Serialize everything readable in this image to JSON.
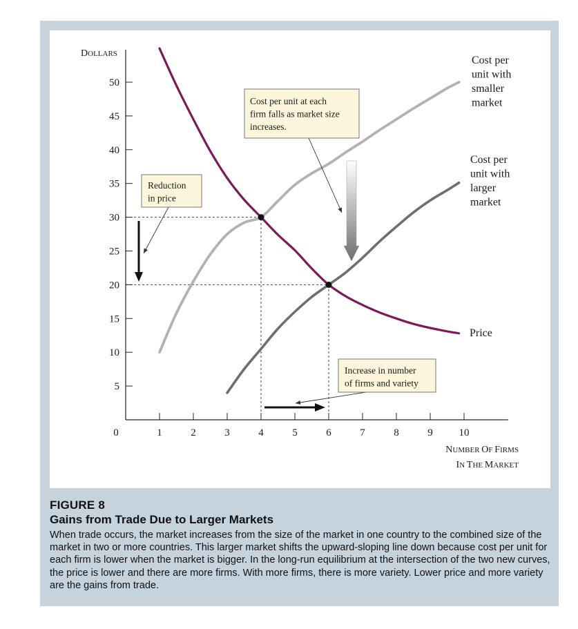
{
  "chart_data": {
    "type": "line",
    "x_axis": {
      "label_line1": "Number of firms",
      "label_line2": "in the market",
      "range": [
        0,
        11.3
      ],
      "ticks": [
        0,
        1,
        2,
        3,
        4,
        5,
        6,
        7,
        8,
        9,
        10
      ]
    },
    "y_axis": {
      "label": "Dollars",
      "range": [
        0,
        55
      ],
      "ticks": [
        5,
        10,
        15,
        20,
        25,
        30,
        35,
        40,
        45,
        50
      ]
    },
    "series": [
      {
        "name": "Price",
        "label_lines": [
          "Price"
        ],
        "color": "#7a1a5a",
        "x": [
          1,
          1.5,
          2,
          2.5,
          3,
          3.5,
          4,
          4.5,
          5,
          5.5,
          6,
          6.5,
          7,
          7.5,
          8,
          8.5,
          9,
          9.5,
          9.85
        ],
        "y": [
          55,
          49.5,
          44.5,
          39.8,
          35.8,
          32.6,
          30,
          27.4,
          25.1,
          22.4,
          20,
          18.3,
          17,
          15.9,
          15,
          14.2,
          13.6,
          13.1,
          12.8
        ]
      },
      {
        "name": "Cost per unit with smaller market",
        "label_lines": [
          "Cost per",
          "unit with",
          "smaller",
          "market"
        ],
        "color": "#b2b2b2",
        "x": [
          1,
          1.5,
          2,
          2.5,
          3,
          3.5,
          4,
          4.5,
          5,
          5.5,
          6,
          6.5,
          7,
          7.5,
          8,
          8.5,
          9,
          9.5,
          9.85
        ],
        "y": [
          10,
          15.8,
          20.5,
          24.5,
          27.5,
          29.2,
          30,
          32.4,
          34.8,
          36.5,
          37.9,
          39.6,
          41.2,
          42.9,
          44.5,
          46.1,
          47.6,
          49.1,
          50
        ]
      },
      {
        "name": "Cost per unit with larger market",
        "label_lines": [
          "Cost per",
          "unit with",
          "larger",
          "market"
        ],
        "color": "#6e6e6e",
        "x": [
          3,
          3.5,
          4,
          4.5,
          5,
          5.5,
          6,
          6.5,
          7,
          7.5,
          8,
          8.5,
          9,
          9.5,
          9.85
        ],
        "y": [
          4,
          7.5,
          10.5,
          13.5,
          16,
          18.2,
          20,
          21.8,
          24,
          26.4,
          28.6,
          30.7,
          32.5,
          34,
          35.1
        ]
      }
    ],
    "points": [
      {
        "x": 4,
        "y": 30
      },
      {
        "x": 6,
        "y": 20
      }
    ],
    "reference_lines": [
      {
        "from": [
          0,
          30
        ],
        "to": [
          4,
          30
        ]
      },
      {
        "from": [
          0,
          20
        ],
        "to": [
          6,
          20
        ]
      },
      {
        "from": [
          4,
          0
        ],
        "to": [
          4,
          30
        ]
      },
      {
        "from": [
          6,
          0
        ],
        "to": [
          6,
          20
        ]
      }
    ],
    "annotations": [
      {
        "id": "ann-cost-falls",
        "lines": [
          "Cost per unit at each",
          "firm falls as market size",
          "increases."
        ]
      },
      {
        "id": "ann-reduction",
        "lines": [
          "Reduction",
          "in price"
        ]
      },
      {
        "id": "ann-increase",
        "lines": [
          "Increase in number",
          "of firms and variety"
        ]
      }
    ],
    "grid": false,
    "legend": "direct labels on curves"
  },
  "caption": {
    "figure_number": "FIGURE 8",
    "title": "Gains from Trade Due to Larger Markets",
    "body": "When trade occurs, the market increases from the size of the market in one country to the combined size of the market in two or more countries. This larger market shifts the upward-sloping line down because cost per unit for each firm is lower when the market is bigger. In the long-run equilibrium at the intersection of the two new curves, the price is lower and there are more firms. With more firms, there is more variety. Lower price and more variety are the gains from trade."
  }
}
